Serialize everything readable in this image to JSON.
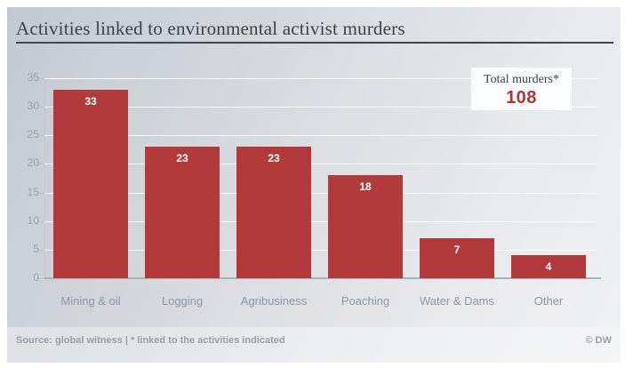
{
  "header": {
    "title": "Activities linked to environmental activist murders"
  },
  "total_box": {
    "label": "Total murders*",
    "value": "108"
  },
  "footer": {
    "source": "Source: global witness | * linked to the activities indicated",
    "credit": "© DW"
  },
  "colors": {
    "bar": "#b23a3a",
    "accent_red": "#b13437",
    "title_text": "#3d4146",
    "axis_label": "#98a2ae",
    "category_label": "#8d98a7",
    "footer_text": "#9aa0a5",
    "background_top": "#c3c9d1",
    "background_bottom": "#f0f1f2"
  },
  "chart_data": {
    "type": "bar",
    "title": "Activities linked to environmental activist murders",
    "categories": [
      "Mining & oil",
      "Logging",
      "Agribusiness",
      "Poaching",
      "Water & Dams",
      "Other"
    ],
    "values": [
      33,
      23,
      23,
      18,
      7,
      4
    ],
    "xlabel": "",
    "ylabel": "",
    "ylim": [
      0,
      35
    ],
    "yticks": [
      0,
      5,
      10,
      15,
      20,
      25,
      30,
      35
    ],
    "grid": true,
    "bar_value_labels": true,
    "legend": null,
    "annotation": {
      "label": "Total murders*",
      "value": 108
    }
  }
}
